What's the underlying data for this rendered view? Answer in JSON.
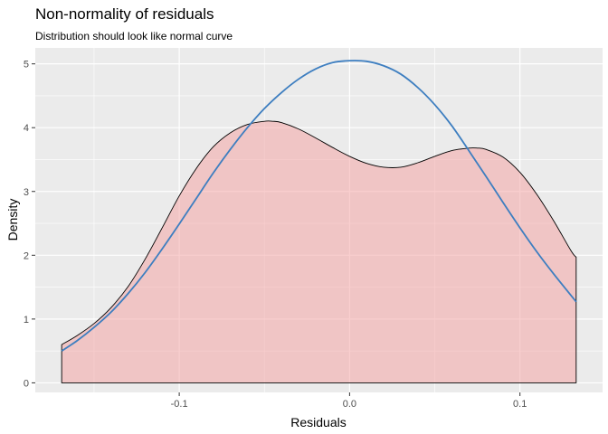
{
  "chart_data": {
    "type": "area",
    "title": "Non-normality of residuals",
    "subtitle": "Distribution should look like normal curve",
    "xlabel": "Residuals",
    "ylabel": "Density",
    "xlim": [
      -0.1845,
      0.1485
    ],
    "ylim": [
      -0.15,
      5.25
    ],
    "x_ticks": [
      -0.1,
      0.0,
      0.1
    ],
    "x_tick_labels": [
      "-0.1",
      "0.0",
      "0.1"
    ],
    "y_ticks": [
      0,
      1,
      2,
      3,
      4,
      5
    ],
    "y_tick_labels": [
      "0",
      "1",
      "2",
      "3",
      "4",
      "5"
    ],
    "grid": true,
    "legend": "none",
    "series": [
      {
        "kind": "density-area",
        "fill_color": "#f4a6a6",
        "line_color": "#000000",
        "x": [
          -0.169,
          -0.16,
          -0.15,
          -0.14,
          -0.13,
          -0.12,
          -0.11,
          -0.1,
          -0.09,
          -0.08,
          -0.07,
          -0.06,
          -0.05,
          -0.045,
          -0.04,
          -0.03,
          -0.02,
          -0.01,
          0.0,
          0.01,
          0.02,
          0.03,
          0.04,
          0.05,
          0.06,
          0.07,
          0.075,
          0.08,
          0.09,
          0.1,
          0.11,
          0.12,
          0.13,
          0.133
        ],
        "values": [
          0.6,
          0.74,
          0.93,
          1.18,
          1.51,
          1.94,
          2.43,
          2.93,
          3.36,
          3.7,
          3.92,
          4.05,
          4.1,
          4.1,
          4.08,
          3.98,
          3.84,
          3.69,
          3.55,
          3.44,
          3.38,
          3.38,
          3.45,
          3.55,
          3.64,
          3.68,
          3.68,
          3.66,
          3.54,
          3.3,
          2.95,
          2.53,
          2.07,
          1.97
        ]
      },
      {
        "kind": "normal-curve",
        "line_color": "#3d7ec0",
        "x": [
          -0.169,
          -0.16,
          -0.15,
          -0.14,
          -0.13,
          -0.12,
          -0.11,
          -0.1,
          -0.09,
          -0.08,
          -0.07,
          -0.06,
          -0.05,
          -0.04,
          -0.03,
          -0.02,
          -0.01,
          0.0,
          0.01,
          0.02,
          0.03,
          0.04,
          0.05,
          0.06,
          0.07,
          0.08,
          0.09,
          0.1,
          0.11,
          0.12,
          0.133
        ],
        "values": [
          0.5,
          0.66,
          0.87,
          1.11,
          1.4,
          1.73,
          2.1,
          2.49,
          2.89,
          3.29,
          3.66,
          4.0,
          4.3,
          4.55,
          4.76,
          4.92,
          5.02,
          5.05,
          5.04,
          4.97,
          4.84,
          4.63,
          4.36,
          4.03,
          3.64,
          3.24,
          2.83,
          2.43,
          2.05,
          1.7,
          1.27
        ]
      }
    ]
  }
}
